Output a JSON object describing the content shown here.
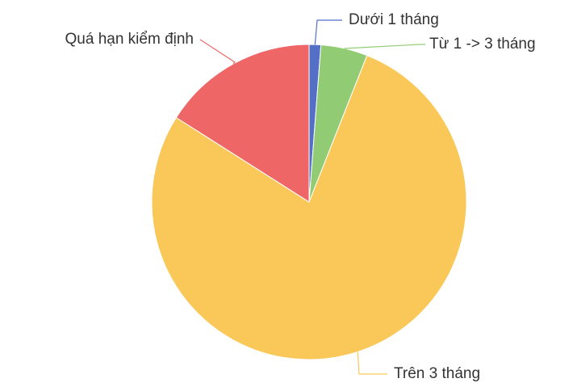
{
  "chart_data": {
    "type": "pie",
    "start_angle_deg": 0,
    "direction": "clockwise",
    "legend": "none",
    "slices": [
      {
        "label": "Dưới 1 tháng",
        "value": 1.2,
        "color": "#5470c6"
      },
      {
        "label": "Từ 1 -> 3 tháng",
        "value": 4.8,
        "color": "#91cc75"
      },
      {
        "label": "Trên 3 tháng",
        "value": 78.0,
        "color": "#fac858"
      },
      {
        "label": "Quá hạn kiểm định",
        "value": 16.0,
        "color": "#ee6666"
      }
    ]
  }
}
